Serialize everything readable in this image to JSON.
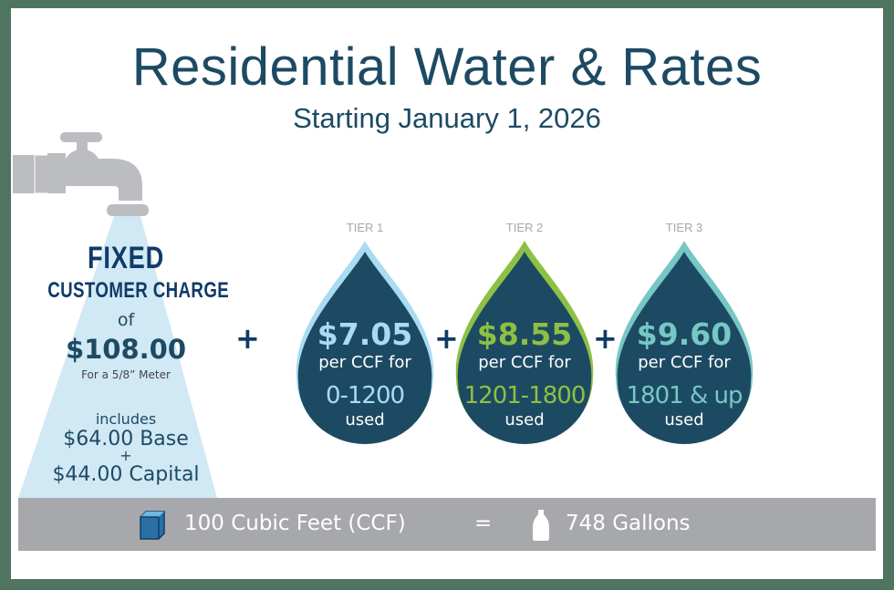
{
  "header": {
    "title": "Residential Water & Rates",
    "subtitle": "Starting January 1, 2026"
  },
  "fixed_charge": {
    "heading": "FIXED",
    "subheading": "CUSTOMER CHARGE",
    "of": "of",
    "amount": "$108.00",
    "meter_note": "For a 5/8” Meter",
    "includes": "includes",
    "base": "$64.00 Base",
    "plus": "+",
    "capital": "$44.00 Capital"
  },
  "plus_sign": "+",
  "tiers": [
    {
      "label": "TIER 1",
      "price": "$7.05",
      "per": "per CCF for",
      "range": "0-1200",
      "used": "used",
      "accent": "#a9dcf3"
    },
    {
      "label": "TIER 2",
      "price": "$8.55",
      "per": "per CCF for",
      "range": "1201-1800",
      "used": "used",
      "accent": "#8dc043"
    },
    {
      "label": "TIER 3",
      "price": "$9.60",
      "per": "per CCF for",
      "range": "1801 & up",
      "used": "used",
      "accent": "#77c7c4"
    }
  ],
  "conversion": {
    "left": "100 Cubic Feet (CCF)",
    "equals": "=",
    "right": "748 Gallons",
    "left_icon": "cube-icon",
    "right_icon": "milk-jug-icon"
  },
  "colors": {
    "navy": "#1d4a63",
    "drop": "#1d4a63",
    "beam": "#d1e8f5",
    "faucet": "#bcbdc1",
    "frame": "#4f7561",
    "bar": "#a7a8ac"
  }
}
